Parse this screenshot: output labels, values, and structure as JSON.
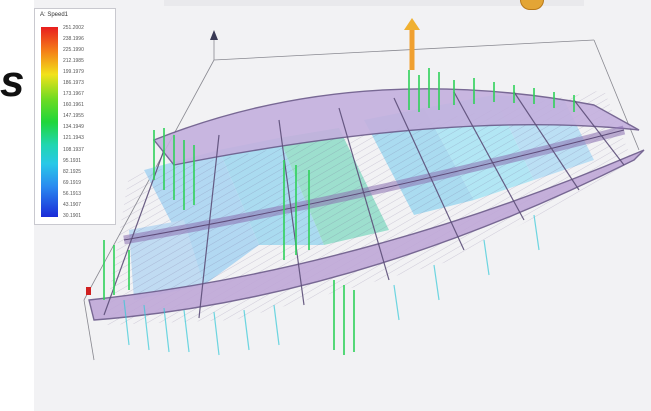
{
  "side_text": "s",
  "legend": {
    "title": "A: Speed1",
    "values": [
      "251.2002",
      "238.1996",
      "225.1990",
      "212.1985",
      "199.1979",
      "186.1973",
      "173.1967",
      "160.1961",
      "147.1955",
      "134.1949",
      "121.1943",
      "108.1937",
      "95.1931",
      "82.1925",
      "69.1919",
      "56.1913",
      "43.1907",
      "30.1901"
    ]
  },
  "colors": {
    "frame_fill": "#b8a4d8",
    "panel_blue": "#9ed8f0",
    "arrows_green": "#2fd25a",
    "arrows_cyan": "#35c9d8",
    "force_orange": "#f0a030"
  }
}
